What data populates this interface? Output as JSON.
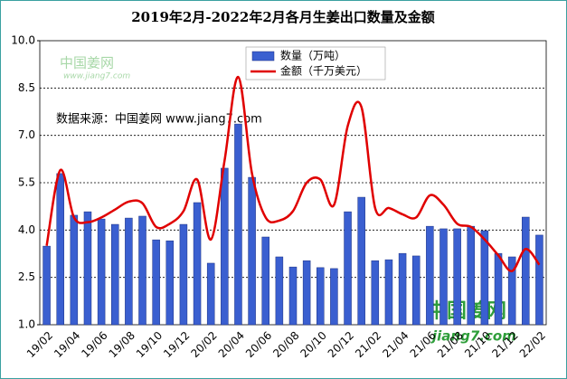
{
  "chart_data": {
    "type": "bar",
    "title": "2019年2月-2022年2月各月生姜出口数量及金额",
    "categories": [
      "19/02",
      null,
      "19/04",
      null,
      "19/06",
      null,
      "19/08",
      null,
      "19/10",
      null,
      "19/12",
      null,
      "20/02",
      null,
      "20/04",
      null,
      "20/06",
      null,
      "20/08",
      null,
      "20/10",
      null,
      "20/12",
      null,
      "21/02",
      null,
      "21/04",
      null,
      "21/06",
      null,
      "21/08",
      null,
      "21/10",
      null,
      "21/12",
      null,
      "22/02"
    ],
    "series": [
      {
        "name": "数量（万吨）",
        "type": "bar",
        "color": "#3a5fd0",
        "values": [
          3.49,
          5.79,
          4.47,
          4.58,
          4.35,
          4.18,
          4.38,
          4.44,
          3.69,
          3.66,
          4.18,
          4.87,
          2.95,
          5.96,
          7.36,
          5.67,
          3.78,
          3.15,
          2.83,
          3.03,
          2.81,
          2.78,
          4.58,
          5.04,
          3.03,
          3.06,
          3.26,
          3.18,
          4.12,
          4.04,
          4.04,
          4.12,
          3.98,
          3.26,
          3.15,
          4.41,
          3.84
        ]
      },
      {
        "name": "金额（千万美元）",
        "type": "line",
        "color": "#e00000",
        "values": [
          3.5,
          5.9,
          4.4,
          4.25,
          4.4,
          4.65,
          4.9,
          4.85,
          4.1,
          4.2,
          4.6,
          5.6,
          3.7,
          6.2,
          8.85,
          5.8,
          4.4,
          4.3,
          4.6,
          5.5,
          5.6,
          4.8,
          7.3,
          7.9,
          4.7,
          4.7,
          4.5,
          4.4,
          5.1,
          4.8,
          4.2,
          4.1,
          3.7,
          3.2,
          2.7,
          3.4,
          2.9
        ]
      }
    ],
    "ylim": [
      1.0,
      10.0
    ],
    "yticks": [
      {
        "value": 1,
        "label": "1.0"
      },
      2.5,
      {
        "value": 4,
        "label": "4.0"
      },
      5.5,
      {
        "value": 7,
        "label": "7.0"
      },
      8.5,
      {
        "value": 10,
        "label": "10.0"
      }
    ],
    "grid": true,
    "legend": "top",
    "annotations": [
      "数据来源：中国姜网 www.jiang7.com",
      "中国姜网",
      "www.jiang7.com",
      "中国姜网",
      "jiang7.com"
    ]
  }
}
